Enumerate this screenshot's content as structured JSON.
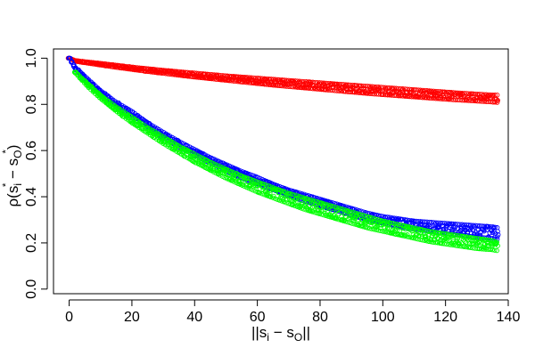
{
  "chart_data": {
    "type": "scatter",
    "title": "",
    "xlabel_parts": {
      "pre": "||s",
      "sub1": "i",
      "mid": " − s",
      "sub2": "O",
      "post": "||"
    },
    "ylabel_parts": {
      "pre": "ρ(s",
      "sub1": "i",
      "sup1": "*",
      "mid": " − s",
      "sub2": "O",
      "sup2": "*",
      "post": ")"
    },
    "xlim": [
      -5,
      140
    ],
    "ylim": [
      -0.02,
      1.04
    ],
    "x_ticks": [
      0,
      20,
      40,
      60,
      80,
      100,
      120,
      140
    ],
    "y_ticks": [
      0.0,
      0.2,
      0.4,
      0.6,
      0.8,
      1.0
    ],
    "x_tick_labels": [
      "0",
      "20",
      "40",
      "60",
      "80",
      "100",
      "120",
      "140"
    ],
    "y_tick_labels": [
      "0.0",
      "0.2",
      "0.4",
      "0.6",
      "0.8",
      "1.0"
    ],
    "grid": false,
    "marker": "open-circle",
    "series": [
      {
        "color": "#ff0000",
        "x": [
          0,
          2,
          4,
          6,
          8,
          10,
          15,
          20,
          25,
          30,
          35,
          40,
          45,
          50,
          55,
          60,
          65,
          70,
          75,
          80,
          85,
          90,
          95,
          100,
          105,
          110,
          115,
          120,
          125,
          130,
          135,
          137
        ],
        "y_upper": [
          1.0,
          0.99,
          0.987,
          0.984,
          0.981,
          0.978,
          0.97,
          0.962,
          0.955,
          0.948,
          0.942,
          0.936,
          0.93,
          0.924,
          0.919,
          0.914,
          0.909,
          0.904,
          0.899,
          0.894,
          0.889,
          0.884,
          0.879,
          0.874,
          0.869,
          0.864,
          0.859,
          0.854,
          0.849,
          0.845,
          0.841,
          0.84
        ],
        "y_lower": [
          1.0,
          0.986,
          0.982,
          0.978,
          0.974,
          0.97,
          0.96,
          0.951,
          0.942,
          0.934,
          0.926,
          0.918,
          0.911,
          0.904,
          0.897,
          0.89,
          0.883,
          0.877,
          0.871,
          0.865,
          0.859,
          0.853,
          0.847,
          0.842,
          0.837,
          0.832,
          0.827,
          0.822,
          0.818,
          0.814,
          0.81,
          0.808
        ]
      },
      {
        "color": "#0000ff",
        "x": [
          0,
          2,
          4,
          6,
          8,
          10,
          15,
          20,
          25,
          30,
          35,
          40,
          45,
          50,
          55,
          60,
          65,
          70,
          75,
          80,
          85,
          90,
          95,
          100,
          105,
          110,
          115,
          120,
          125,
          130,
          135,
          137
        ],
        "y_upper": [
          1.0,
          0.96,
          0.935,
          0.91,
          0.885,
          0.86,
          0.81,
          0.77,
          0.72,
          0.68,
          0.64,
          0.605,
          0.57,
          0.54,
          0.51,
          0.485,
          0.455,
          0.43,
          0.41,
          0.39,
          0.37,
          0.35,
          0.33,
          0.315,
          0.305,
          0.295,
          0.29,
          0.285,
          0.28,
          0.275,
          0.27,
          0.265
        ],
        "y_lower": [
          1.0,
          0.95,
          0.92,
          0.895,
          0.87,
          0.84,
          0.79,
          0.745,
          0.7,
          0.655,
          0.615,
          0.58,
          0.545,
          0.51,
          0.48,
          0.455,
          0.43,
          0.405,
          0.38,
          0.36,
          0.34,
          0.32,
          0.3,
          0.285,
          0.27,
          0.26,
          0.25,
          0.24,
          0.235,
          0.225,
          0.22,
          0.215
        ]
      },
      {
        "color": "#00ff00",
        "x": [
          2,
          4,
          6,
          8,
          10,
          15,
          20,
          25,
          30,
          35,
          40,
          45,
          50,
          55,
          60,
          65,
          70,
          75,
          80,
          85,
          90,
          95,
          100,
          105,
          110,
          115,
          120,
          125,
          130,
          135,
          137
        ],
        "y_upper": [
          0.94,
          0.915,
          0.89,
          0.865,
          0.84,
          0.79,
          0.745,
          0.7,
          0.66,
          0.62,
          0.585,
          0.55,
          0.52,
          0.49,
          0.465,
          0.44,
          0.415,
          0.395,
          0.375,
          0.355,
          0.335,
          0.315,
          0.295,
          0.28,
          0.265,
          0.25,
          0.24,
          0.23,
          0.22,
          0.21,
          0.2
        ],
        "y_lower": [
          0.935,
          0.905,
          0.875,
          0.85,
          0.825,
          0.77,
          0.72,
          0.675,
          0.63,
          0.59,
          0.55,
          0.515,
          0.48,
          0.45,
          0.42,
          0.395,
          0.37,
          0.345,
          0.325,
          0.305,
          0.285,
          0.265,
          0.25,
          0.235,
          0.22,
          0.205,
          0.195,
          0.185,
          0.175,
          0.17,
          0.165
        ]
      }
    ]
  }
}
